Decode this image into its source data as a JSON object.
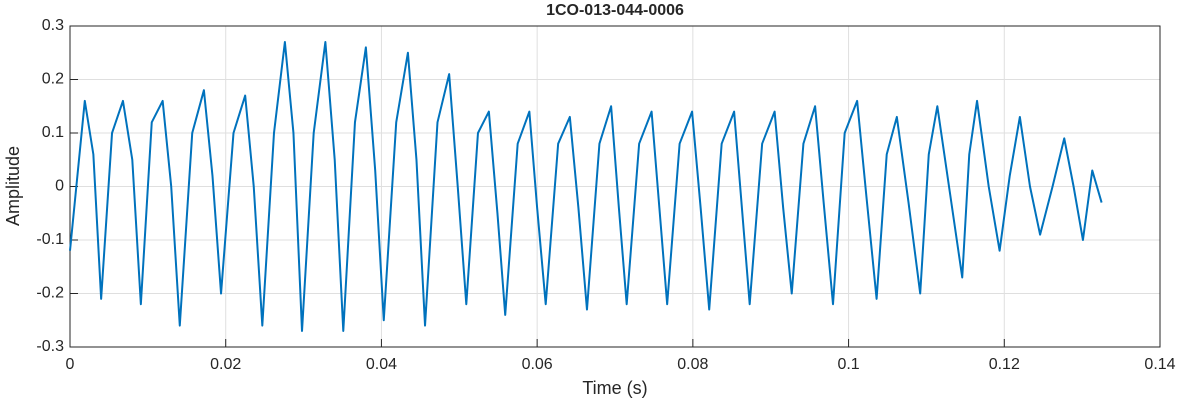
{
  "chart_data": {
    "type": "line",
    "title": "1CO-013-044-0006",
    "x_label": "Time (s)",
    "y_label": "Amplitude",
    "xlim": [
      0,
      0.14
    ],
    "xticks": [
      0,
      0.02,
      0.04,
      0.06,
      0.08,
      0.1,
      0.12,
      0.14
    ],
    "ylim": [
      -0.3,
      0.3
    ],
    "yticks": [
      -0.3,
      -0.2,
      -0.1,
      0,
      0.1,
      0.2,
      0.3
    ],
    "grid": true,
    "series": [
      {
        "color": "#0072bd",
        "x": [
          0,
          0.0019,
          0.003,
          0.004,
          0.0054,
          0.0068,
          0.008,
          0.0091,
          0.0105,
          0.0119,
          0.013,
          0.0141,
          0.0157,
          0.0172,
          0.0183,
          0.0194,
          0.021,
          0.0225,
          0.0236,
          0.0247,
          0.0262,
          0.0276,
          0.0287,
          0.0298,
          0.0313,
          0.0328,
          0.034,
          0.0351,
          0.0366,
          0.038,
          0.0392,
          0.0403,
          0.0419,
          0.0434,
          0.0445,
          0.0456,
          0.0472,
          0.0487,
          0.0498,
          0.0509,
          0.0524,
          0.0538,
          0.0549,
          0.0559,
          0.0575,
          0.059,
          0.06,
          0.0611,
          0.0627,
          0.0642,
          0.0653,
          0.0664,
          0.068,
          0.0695,
          0.0705,
          0.0715,
          0.0731,
          0.0747,
          0.0757,
          0.0767,
          0.0783,
          0.0799,
          0.081,
          0.0821,
          0.0837,
          0.0853,
          0.0863,
          0.0873,
          0.0889,
          0.0905,
          0.0916,
          0.0927,
          0.0942,
          0.0957,
          0.0968,
          0.098,
          0.0995,
          0.1011,
          0.1023,
          0.1036,
          0.1049,
          0.1062,
          0.1077,
          0.1092,
          0.1103,
          0.1114,
          0.113,
          0.1146,
          0.1155,
          0.1165,
          0.118,
          0.1194,
          0.1207,
          0.122,
          0.1233,
          0.1246,
          0.1262,
          0.1277,
          0.1289,
          0.1301,
          0.1313,
          0.1325
        ],
        "values": [
          -0.12,
          0.16,
          0.06,
          -0.21,
          0.1,
          0.16,
          0.05,
          -0.22,
          0.12,
          0.16,
          0.0,
          -0.26,
          0.1,
          0.18,
          0.02,
          -0.2,
          0.1,
          0.17,
          0.0,
          -0.26,
          0.1,
          0.27,
          0.1,
          -0.27,
          0.1,
          0.27,
          0.05,
          -0.27,
          0.12,
          0.26,
          0.03,
          -0.25,
          0.12,
          0.25,
          0.05,
          -0.26,
          0.12,
          0.21,
          0.0,
          -0.22,
          0.1,
          0.14,
          -0.05,
          -0.24,
          0.08,
          0.14,
          -0.04,
          -0.22,
          0.08,
          0.13,
          -0.04,
          -0.23,
          0.08,
          0.15,
          -0.04,
          -0.22,
          0.08,
          0.14,
          -0.04,
          -0.22,
          0.08,
          0.14,
          -0.04,
          -0.23,
          0.08,
          0.14,
          -0.04,
          -0.22,
          0.08,
          0.14,
          -0.04,
          -0.2,
          0.08,
          0.15,
          -0.03,
          -0.22,
          0.1,
          0.16,
          -0.02,
          -0.21,
          0.06,
          0.13,
          -0.03,
          -0.2,
          0.06,
          0.15,
          -0.01,
          -0.17,
          0.06,
          0.16,
          0.0,
          -0.12,
          0.02,
          0.13,
          0.0,
          -0.09,
          0.0,
          0.09,
          0.0,
          -0.1,
          0.03,
          -0.03
        ]
      }
    ]
  }
}
